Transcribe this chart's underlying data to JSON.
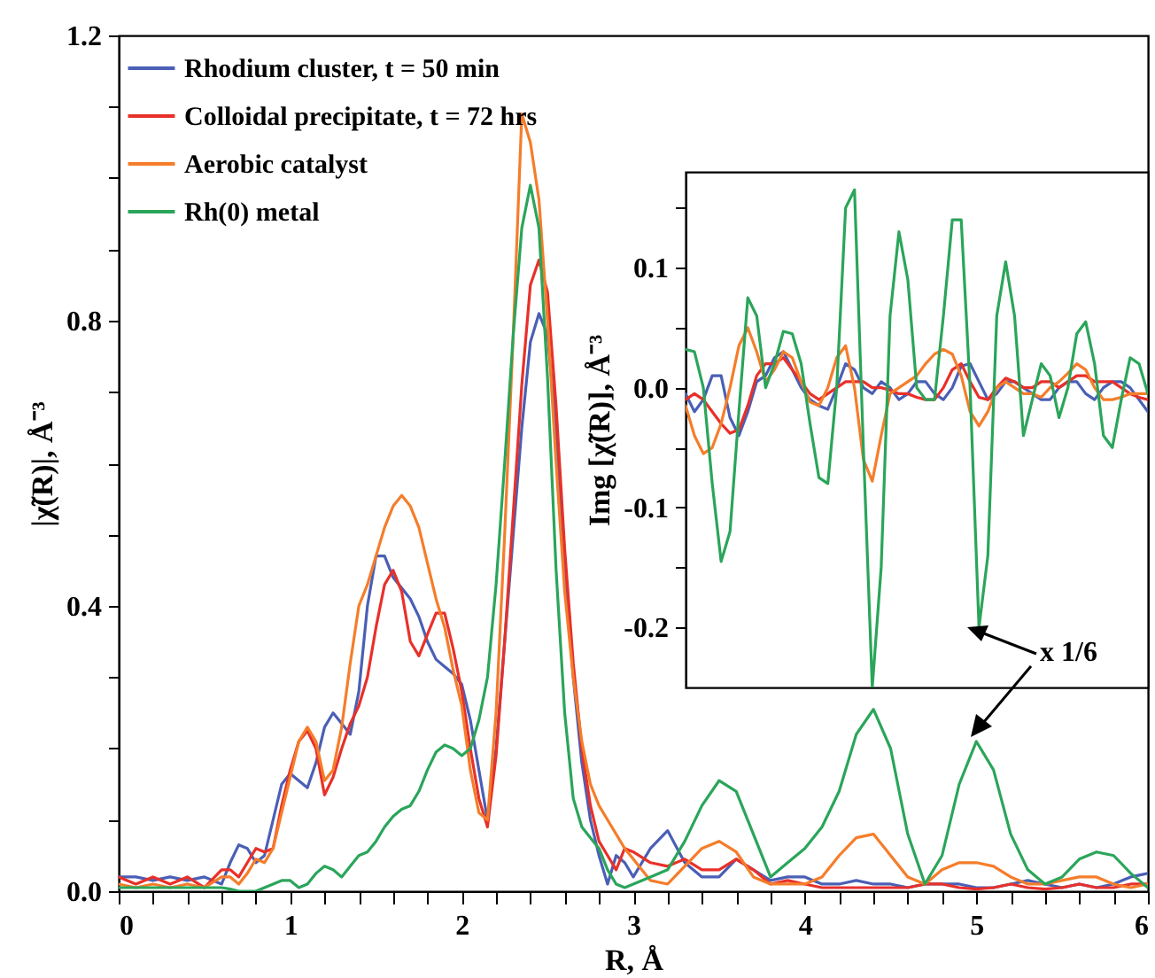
{
  "chart_data": [
    {
      "type": "line",
      "xlabel": "R, Å",
      "ylabel": "|χ̃(R)|, Å⁻³",
      "legend": "top left",
      "xlim": [
        0,
        6
      ],
      "xticks": [
        0,
        {
          "value": 0.2,
          "label": null
        },
        {
          "value": 0.4,
          "label": null
        },
        {
          "value": 0.6,
          "label": null
        },
        {
          "value": 0.8,
          "label": null
        },
        1,
        {
          "value": 1.2,
          "label": null
        },
        {
          "value": 1.4,
          "label": null
        },
        {
          "value": 1.6,
          "label": null
        },
        {
          "value": 1.8,
          "label": null
        },
        2,
        {
          "value": 2.2,
          "label": null
        },
        {
          "value": 2.4,
          "label": null
        },
        {
          "value": 2.6,
          "label": null
        },
        {
          "value": 2.8,
          "label": null
        },
        3,
        {
          "value": 3.2,
          "label": null
        },
        {
          "value": 3.4,
          "label": null
        },
        {
          "value": 3.6,
          "label": null
        },
        {
          "value": 3.8,
          "label": null
        },
        4,
        {
          "value": 4.2,
          "label": null
        },
        {
          "value": 4.4,
          "label": null
        },
        {
          "value": 4.6,
          "label": null
        },
        {
          "value": 4.8,
          "label": null
        },
        5,
        {
          "value": 5.2,
          "label": null
        },
        {
          "value": 5.4,
          "label": null
        },
        {
          "value": 5.6,
          "label": null
        },
        {
          "value": 5.8,
          "label": null
        },
        6
      ],
      "ylim": [
        0,
        1.2
      ],
      "yticks": [
        {
          "value": 0,
          "label": "0.0"
        },
        {
          "value": 0.1,
          "label": null
        },
        {
          "value": 0.2,
          "label": null
        },
        {
          "value": 0.3,
          "label": null
        },
        0.4,
        {
          "value": 0.5,
          "label": null
        },
        {
          "value": 0.6,
          "label": null
        },
        {
          "value": 0.7,
          "label": null
        },
        0.8,
        {
          "value": 0.9,
          "label": null
        },
        {
          "value": 1.0,
          "label": null
        },
        {
          "value": 1.1,
          "label": null
        },
        1.2
      ],
      "x": [
        0,
        0.1,
        0.2,
        0.3,
        0.4,
        0.5,
        0.6,
        0.65,
        0.7,
        0.75,
        0.8,
        0.85,
        0.9,
        0.95,
        1.0,
        1.05,
        1.1,
        1.15,
        1.2,
        1.25,
        1.3,
        1.35,
        1.4,
        1.45,
        1.5,
        1.55,
        1.6,
        1.65,
        1.7,
        1.75,
        1.8,
        1.85,
        1.9,
        1.95,
        2.0,
        2.05,
        2.1,
        2.15,
        2.2,
        2.25,
        2.3,
        2.35,
        2.4,
        2.45,
        2.5,
        2.55,
        2.6,
        2.65,
        2.7,
        2.75,
        2.8,
        2.85,
        2.9,
        2.95,
        3.0,
        3.1,
        3.2,
        3.3,
        3.4,
        3.5,
        3.6,
        3.7,
        3.8,
        3.9,
        4.0,
        4.1,
        4.2,
        4.3,
        4.4,
        4.5,
        4.6,
        4.7,
        4.8,
        4.9,
        5.0,
        5.1,
        5.2,
        5.3,
        5.4,
        5.5,
        5.6,
        5.7,
        5.8,
        5.9,
        6.0
      ],
      "series": [
        {
          "name": "Rhodium cluster, t = 50 min",
          "color": "#4a5fb5",
          "values": [
            0.02,
            0.02,
            0.015,
            0.02,
            0.015,
            0.02,
            0.01,
            0.04,
            0.065,
            0.06,
            0.04,
            0.05,
            0.1,
            0.15,
            0.165,
            0.155,
            0.145,
            0.18,
            0.23,
            0.25,
            0.235,
            0.22,
            0.28,
            0.4,
            0.47,
            0.47,
            0.44,
            0.425,
            0.41,
            0.385,
            0.35,
            0.325,
            0.315,
            0.305,
            0.29,
            0.24,
            0.17,
            0.1,
            0.2,
            0.35,
            0.5,
            0.65,
            0.77,
            0.81,
            0.78,
            0.65,
            0.45,
            0.3,
            0.18,
            0.1,
            0.05,
            0.01,
            0.05,
            0.04,
            0.02,
            0.06,
            0.085,
            0.04,
            0.02,
            0.02,
            0.045,
            0.03,
            0.015,
            0.02,
            0.02,
            0.01,
            0.01,
            0.015,
            0.01,
            0.01,
            0.005,
            0.01,
            0.01,
            0.01,
            0.005,
            0.005,
            0.01,
            0.015,
            0.01,
            0.005,
            0.01,
            0.005,
            0.01,
            0.02,
            0.025
          ]
        },
        {
          "name": "Colloidal precipitate, t = 72 hrs",
          "color": "#e8302a",
          "values": [
            0.02,
            0.01,
            0.02,
            0.01,
            0.02,
            0.005,
            0.03,
            0.03,
            0.02,
            0.04,
            0.06,
            0.055,
            0.06,
            0.12,
            0.17,
            0.21,
            0.225,
            0.2,
            0.135,
            0.16,
            0.2,
            0.235,
            0.26,
            0.3,
            0.37,
            0.43,
            0.45,
            0.42,
            0.35,
            0.33,
            0.36,
            0.39,
            0.39,
            0.34,
            0.28,
            0.2,
            0.13,
            0.09,
            0.19,
            0.35,
            0.53,
            0.71,
            0.85,
            0.885,
            0.84,
            0.68,
            0.48,
            0.32,
            0.2,
            0.12,
            0.07,
            0.05,
            0.03,
            0.06,
            0.055,
            0.04,
            0.035,
            0.045,
            0.03,
            0.03,
            0.045,
            0.03,
            0.01,
            0.015,
            0.01,
            0.005,
            0.005,
            0.005,
            0.005,
            0.005,
            0.005,
            0.01,
            0.01,
            0.005,
            0.003,
            0.005,
            0.01,
            0.005,
            0.003,
            0.005,
            0.01,
            0.005,
            0.005,
            0.01,
            0.01
          ]
        },
        {
          "name": "Aerobic catalyst",
          "color": "#f57d2a",
          "values": [
            0.01,
            0.005,
            0.01,
            0.005,
            0.01,
            0.005,
            0.02,
            0.02,
            0.01,
            0.025,
            0.045,
            0.04,
            0.06,
            0.11,
            0.16,
            0.21,
            0.23,
            0.21,
            0.155,
            0.17,
            0.23,
            0.32,
            0.4,
            0.43,
            0.47,
            0.51,
            0.54,
            0.555,
            0.54,
            0.51,
            0.46,
            0.41,
            0.37,
            0.31,
            0.26,
            0.17,
            0.11,
            0.1,
            0.25,
            0.5,
            0.78,
            1.09,
            1.05,
            0.97,
            0.8,
            0.6,
            0.42,
            0.3,
            0.21,
            0.15,
            0.12,
            0.1,
            0.08,
            0.06,
            0.045,
            0.015,
            0.01,
            0.035,
            0.06,
            0.07,
            0.055,
            0.02,
            0.01,
            0.01,
            0.01,
            0.02,
            0.05,
            0.075,
            0.08,
            0.05,
            0.02,
            0.01,
            0.03,
            0.04,
            0.04,
            0.035,
            0.02,
            0.01,
            0.01,
            0.015,
            0.02,
            0.02,
            0.01,
            0.005,
            0.01
          ]
        },
        {
          "name": "Rh(0) metal",
          "color": "#2aa55a",
          "values": [
            0.005,
            0.005,
            0.005,
            0.005,
            0.005,
            0.005,
            0.005,
            0.003,
            0,
            0,
            0,
            0.005,
            0.01,
            0.015,
            0.015,
            0.005,
            0.01,
            0.025,
            0.035,
            0.03,
            0.02,
            0.035,
            0.05,
            0.055,
            0.07,
            0.09,
            0.105,
            0.115,
            0.12,
            0.14,
            0.17,
            0.195,
            0.205,
            0.2,
            0.19,
            0.2,
            0.24,
            0.3,
            0.43,
            0.6,
            0.78,
            0.93,
            0.99,
            0.93,
            0.72,
            0.45,
            0.25,
            0.13,
            0.09,
            0.075,
            0.06,
            0.03,
            0.01,
            0.005,
            0.01,
            0.02,
            0.03,
            0.07,
            0.12,
            0.155,
            0.14,
            0.08,
            0.02,
            0.04,
            0.06,
            0.09,
            0.14,
            0.22,
            0.255,
            0.2,
            0.08,
            0.01,
            0.05,
            0.15,
            0.21,
            0.17,
            0.08,
            0.03,
            0.01,
            0.02,
            0.045,
            0.055,
            0.05,
            0.025,
            0.005
          ]
        }
      ]
    },
    {
      "type": "line",
      "ylabel": "Img [χ̃(R)], Å⁻³",
      "annotations": [
        "x 1/6"
      ],
      "categories": [
        null,
        null,
        null,
        null,
        null,
        null,
        null,
        null,
        null,
        null,
        null,
        null,
        null,
        null,
        null,
        null,
        null,
        null,
        null,
        null,
        null,
        null,
        null,
        null,
        null,
        null,
        null,
        null,
        null,
        null,
        null,
        null,
        null,
        null,
        null,
        null,
        null,
        null,
        null,
        null,
        null,
        null,
        null,
        null,
        null,
        null,
        null,
        null,
        null,
        null,
        null,
        null,
        null
      ],
      "ylim": [
        -0.25,
        0.18
      ],
      "yticks": [
        -0.2,
        {
          "value": -0.15,
          "label": null
        },
        -0.1,
        {
          "value": -0.05,
          "label": null
        },
        {
          "value": 0,
          "label": "0.0"
        },
        {
          "value": 0.05,
          "label": null
        },
        0.1,
        {
          "value": 0.15,
          "label": null
        }
      ],
      "series": [
        {
          "color": "#4a5fb5",
          "values": [
            -0.005,
            -0.02,
            -0.01,
            0.01,
            0.01,
            -0.025,
            -0.04,
            -0.02,
            0.005,
            0.01,
            0.025,
            0.03,
            0.015,
            0,
            -0.01,
            -0.015,
            -0.018,
            0,
            0.02,
            0.015,
            0,
            -0.005,
            0.005,
            0,
            -0.01,
            -0.005,
            0.005,
            0.005,
            -0.005,
            -0.01,
            0,
            0.018,
            0.02,
            0.005,
            -0.01,
            -0.005,
            0.005,
            0.005,
            0,
            -0.005,
            -0.01,
            -0.01,
            0,
            0.005,
            0.005,
            -0.005,
            -0.01,
            0,
            0.005,
            0.005,
            0,
            -0.01,
            -0.02
          ]
        },
        {
          "color": "#e8302a",
          "values": [
            -0.01,
            -0.005,
            -0.01,
            -0.02,
            -0.03,
            -0.038,
            -0.035,
            -0.015,
            0.01,
            0.02,
            0.02,
            0.025,
            0.015,
            0.005,
            -0.005,
            -0.01,
            -0.005,
            0,
            0.005,
            0.005,
            0.005,
            0,
            0,
            -0.002,
            -0.005,
            -0.005,
            -0.008,
            -0.01,
            -0.01,
            0,
            0.015,
            0.02,
            0.005,
            -0.008,
            -0.01,
            0,
            0.008,
            0.005,
            0,
            0,
            0.005,
            0.005,
            0,
            0.005,
            0.01,
            0.01,
            0.005,
            0.005,
            0.005,
            0,
            -0.005,
            -0.008,
            -0.01
          ]
        },
        {
          "color": "#f57d2a",
          "values": [
            -0.015,
            -0.04,
            -0.055,
            -0.05,
            -0.03,
            0,
            0.035,
            0.05,
            0.03,
            0.005,
            0.015,
            0.03,
            0.025,
            0.005,
            -0.012,
            -0.015,
            0,
            0.025,
            0.035,
            0,
            -0.06,
            -0.078,
            -0.04,
            -0.005,
            0,
            0.005,
            0.01,
            0.02,
            0.028,
            0.032,
            0.028,
            0.01,
            -0.02,
            -0.032,
            -0.02,
            0,
            0.005,
            0,
            -0.005,
            -0.005,
            -0.008,
            0,
            0.005,
            0.012,
            0.02,
            0.015,
            0,
            -0.01,
            -0.01,
            -0.008,
            -0.005,
            -0.005,
            -0.005
          ]
        },
        {
          "color": "#2aa55a",
          "values": [
            0.032,
            0.03,
            0,
            -0.08,
            -0.145,
            -0.12,
            -0.02,
            0.075,
            0.06,
            0,
            0.02,
            0.047,
            0.045,
            0.02,
            -0.03,
            -0.075,
            -0.08,
            0,
            0.15,
            0.165,
            -0.05,
            -0.25,
            -0.15,
            0.06,
            0.13,
            0.09,
            0,
            -0.01,
            -0.01,
            0.06,
            0.14,
            0.14,
            0,
            -0.2,
            -0.14,
            0.06,
            0.105,
            0.06,
            -0.04,
            -0.01,
            0.02,
            0.01,
            -0.025,
            0,
            0.045,
            0.055,
            0.02,
            -0.04,
            -0.05,
            -0.01,
            0.025,
            0.02,
            -0.005
          ]
        }
      ]
    }
  ]
}
